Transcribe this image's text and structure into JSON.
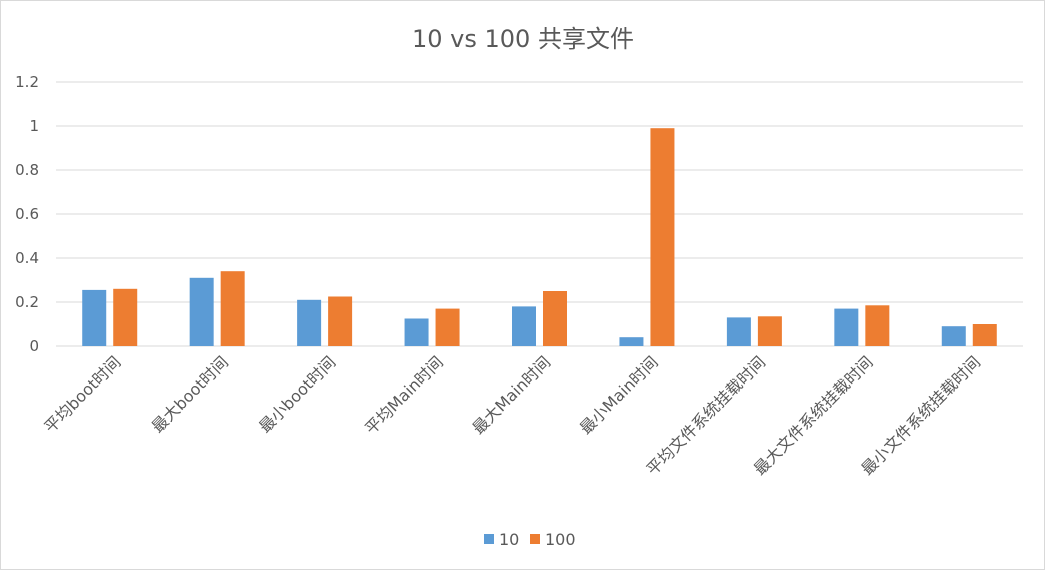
{
  "chart_data": {
    "type": "bar",
    "title": "10 vs 100 共享文件",
    "xlabel": "",
    "ylabel": "",
    "ylim": [
      0,
      1.2
    ],
    "yticks": [
      "0",
      "0.2",
      "0.4",
      "0.6",
      "0.8",
      "1",
      "1.2"
    ],
    "grid": true,
    "legend": "bottom",
    "categories": [
      "平均boot时间",
      "最大boot时间",
      "最小boot时间",
      "平均Main时间",
      "最大Main时间",
      "最小Main时间",
      "平均文件系统挂载时间",
      "最大文件系统挂载时间",
      "最小文件系统挂载时间"
    ],
    "series": [
      {
        "name": "10",
        "color": "#5b9bd5",
        "values": [
          0.255,
          0.31,
          0.21,
          0.125,
          0.18,
          0.04,
          0.13,
          0.17,
          0.09
        ]
      },
      {
        "name": "100",
        "color": "#ed7d31",
        "values": [
          0.26,
          0.34,
          0.225,
          0.17,
          0.25,
          0.99,
          0.135,
          0.185,
          0.1
        ]
      }
    ]
  }
}
